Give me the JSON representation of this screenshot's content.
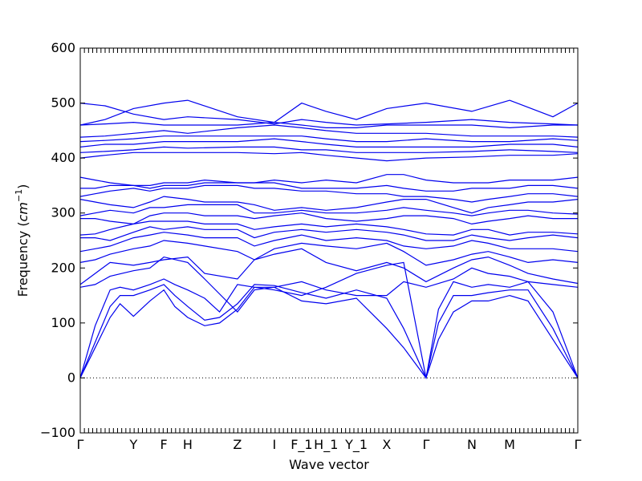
{
  "chart_data": {
    "type": "line",
    "title": "",
    "xlabel": "Wave vector",
    "ylabel_text": "Frequency (",
    "ylabel_unit_base": "cm",
    "ylabel_unit_sup": "−1",
    "ylabel_close": ")",
    "ylim": [
      -100,
      600
    ],
    "yticks": [
      -100,
      0,
      100,
      200,
      300,
      400,
      500,
      600
    ],
    "zero_line": 0,
    "grid": false,
    "color": "#0000ee",
    "kpoints": [
      {
        "label": "Γ",
        "x": 0.0
      },
      {
        "label": "Y",
        "x": 0.107
      },
      {
        "label": "F",
        "x": 0.168
      },
      {
        "label": "H",
        "x": 0.216
      },
      {
        "label": "Z",
        "x": 0.316
      },
      {
        "label": "I",
        "x": 0.39
      },
      {
        "label": "F_1",
        "x": 0.445
      },
      {
        "label": "H_1",
        "x": 0.494
      },
      {
        "label": "Y_1",
        "x": 0.555
      },
      {
        "label": "X",
        "x": 0.616
      },
      {
        "label": "Γ",
        "x": 0.695
      },
      {
        "label": "N",
        "x": 0.787
      },
      {
        "label": "M",
        "x": 0.863
      },
      {
        "label": "Γ",
        "x": 1.0
      }
    ],
    "series": [
      {
        "x": [
          0,
          0.03,
          0.06,
          0.08,
          0.107,
          0.14,
          0.168,
          0.19,
          0.216,
          0.25,
          0.28,
          0.316,
          0.35,
          0.39,
          0.445,
          0.494,
          0.555,
          0.616,
          0.65,
          0.695,
          0.72,
          0.75,
          0.787,
          0.82,
          0.863,
          0.9,
          0.95,
          1.0
        ],
        "y": [
          0,
          55,
          110,
          135,
          112,
          140,
          160,
          130,
          110,
          95,
          100,
          125,
          165,
          165,
          140,
          135,
          145,
          90,
          55,
          0,
          70,
          120,
          140,
          140,
          150,
          140,
          70,
          0
        ]
      },
      {
        "x": [
          0,
          0.03,
          0.06,
          0.08,
          0.107,
          0.14,
          0.168,
          0.19,
          0.216,
          0.25,
          0.28,
          0.316,
          0.35,
          0.39,
          0.445,
          0.494,
          0.555,
          0.616,
          0.65,
          0.695,
          0.72,
          0.75,
          0.787,
          0.82,
          0.863,
          0.9,
          0.95,
          1.0
        ],
        "y": [
          0,
          65,
          130,
          150,
          150,
          160,
          170,
          150,
          130,
          105,
          110,
          135,
          170,
          168,
          155,
          145,
          160,
          145,
          90,
          0,
          100,
          150,
          150,
          155,
          160,
          160,
          90,
          0
        ]
      },
      {
        "x": [
          0,
          0.03,
          0.06,
          0.08,
          0.107,
          0.14,
          0.168,
          0.19,
          0.216,
          0.25,
          0.28,
          0.316,
          0.35,
          0.39,
          0.445,
          0.494,
          0.555,
          0.616,
          0.65,
          0.695,
          0.72,
          0.75,
          0.787,
          0.82,
          0.863,
          0.9,
          0.95,
          1.0
        ],
        "y": [
          0,
          95,
          160,
          165,
          160,
          170,
          180,
          170,
          160,
          145,
          120,
          170,
          165,
          160,
          150,
          165,
          190,
          205,
          210,
          0,
          125,
          175,
          165,
          170,
          165,
          175,
          120,
          0
        ]
      },
      {
        "x": [
          0,
          0.03,
          0.06,
          0.107,
          0.14,
          0.168,
          0.216,
          0.25,
          0.316,
          0.35,
          0.39,
          0.445,
          0.494,
          0.555,
          0.616,
          0.65,
          0.695,
          0.75,
          0.787,
          0.82,
          0.863,
          0.9,
          0.95,
          1.0
        ],
        "y": [
          165,
          170,
          185,
          195,
          200,
          220,
          210,
          180,
          120,
          160,
          165,
          175,
          160,
          150,
          150,
          175,
          165,
          180,
          200,
          190,
          185,
          175,
          170,
          165
        ]
      },
      {
        "x": [
          0,
          0.03,
          0.06,
          0.107,
          0.14,
          0.168,
          0.216,
          0.25,
          0.316,
          0.35,
          0.39,
          0.445,
          0.494,
          0.555,
          0.616,
          0.65,
          0.695,
          0.75,
          0.787,
          0.82,
          0.863,
          0.9,
          0.95,
          1.0
        ],
        "y": [
          170,
          190,
          210,
          205,
          210,
          215,
          220,
          190,
          180,
          215,
          225,
          235,
          210,
          195,
          210,
          200,
          175,
          200,
          215,
          220,
          205,
          190,
          180,
          172
        ]
      },
      {
        "x": [
          0,
          0.03,
          0.06,
          0.107,
          0.14,
          0.168,
          0.216,
          0.25,
          0.316,
          0.35,
          0.39,
          0.445,
          0.494,
          0.555,
          0.616,
          0.65,
          0.695,
          0.75,
          0.787,
          0.82,
          0.863,
          0.9,
          0.95,
          1.0
        ],
        "y": [
          210,
          215,
          225,
          235,
          240,
          250,
          245,
          240,
          230,
          215,
          235,
          245,
          240,
          235,
          245,
          230,
          205,
          215,
          225,
          230,
          220,
          210,
          215,
          210
        ]
      },
      {
        "x": [
          0,
          0.03,
          0.06,
          0.107,
          0.14,
          0.168,
          0.216,
          0.25,
          0.316,
          0.35,
          0.39,
          0.445,
          0.494,
          0.555,
          0.616,
          0.65,
          0.695,
          0.75,
          0.787,
          0.82,
          0.863,
          0.9,
          0.95,
          1.0
        ],
        "y": [
          230,
          235,
          240,
          255,
          260,
          265,
          260,
          255,
          255,
          240,
          250,
          260,
          250,
          255,
          250,
          240,
          235,
          240,
          250,
          245,
          235,
          235,
          235,
          230
        ]
      },
      {
        "x": [
          0,
          0.03,
          0.06,
          0.107,
          0.14,
          0.168,
          0.216,
          0.25,
          0.316,
          0.35,
          0.39,
          0.445,
          0.494,
          0.555,
          0.616,
          0.65,
          0.695,
          0.75,
          0.787,
          0.82,
          0.863,
          0.9,
          0.95,
          1.0
        ],
        "y": [
          255,
          255,
          250,
          265,
          275,
          270,
          275,
          270,
          270,
          255,
          265,
          270,
          265,
          270,
          265,
          260,
          250,
          250,
          260,
          255,
          250,
          255,
          260,
          255
        ]
      },
      {
        "x": [
          0,
          0.03,
          0.06,
          0.107,
          0.14,
          0.168,
          0.216,
          0.25,
          0.316,
          0.35,
          0.39,
          0.445,
          0.494,
          0.555,
          0.616,
          0.65,
          0.695,
          0.75,
          0.787,
          0.82,
          0.863,
          0.9,
          0.95,
          1.0
        ],
        "y": [
          260,
          262,
          270,
          280,
          285,
          285,
          285,
          280,
          280,
          270,
          275,
          280,
          275,
          280,
          275,
          270,
          262,
          260,
          270,
          270,
          260,
          265,
          265,
          262
        ]
      },
      {
        "x": [
          0,
          0.03,
          0.06,
          0.107,
          0.14,
          0.168,
          0.216,
          0.25,
          0.316,
          0.35,
          0.39,
          0.445,
          0.494,
          0.555,
          0.616,
          0.65,
          0.695,
          0.75,
          0.787,
          0.82,
          0.863,
          0.9,
          0.95,
          1.0
        ],
        "y": [
          290,
          290,
          285,
          280,
          295,
          300,
          300,
          295,
          295,
          290,
          295,
          300,
          290,
          285,
          290,
          295,
          295,
          290,
          280,
          285,
          290,
          295,
          290,
          290
        ]
      },
      {
        "x": [
          0,
          0.03,
          0.06,
          0.107,
          0.14,
          0.168,
          0.216,
          0.25,
          0.316,
          0.35,
          0.39,
          0.445,
          0.494,
          0.555,
          0.616,
          0.65,
          0.695,
          0.75,
          0.787,
          0.82,
          0.863,
          0.9,
          0.95,
          1.0
        ],
        "y": [
          295,
          300,
          305,
          300,
          310,
          310,
          315,
          315,
          315,
          300,
          300,
          305,
          300,
          300,
          305,
          310,
          305,
          300,
          295,
          300,
          305,
          305,
          300,
          298
        ]
      },
      {
        "x": [
          0,
          0.03,
          0.06,
          0.107,
          0.14,
          0.168,
          0.216,
          0.25,
          0.316,
          0.35,
          0.39,
          0.445,
          0.494,
          0.555,
          0.616,
          0.65,
          0.695,
          0.75,
          0.787,
          0.82,
          0.863,
          0.9,
          0.95,
          1.0
        ],
        "y": [
          325,
          320,
          315,
          310,
          320,
          330,
          325,
          320,
          320,
          315,
          305,
          310,
          305,
          310,
          320,
          325,
          325,
          310,
          300,
          310,
          315,
          320,
          320,
          325
        ]
      },
      {
        "x": [
          0,
          0.03,
          0.06,
          0.107,
          0.14,
          0.168,
          0.216,
          0.25,
          0.316,
          0.35,
          0.39,
          0.445,
          0.494,
          0.555,
          0.616,
          0.65,
          0.695,
          0.75,
          0.787,
          0.82,
          0.863,
          0.9,
          0.95,
          1.0
        ],
        "y": [
          330,
          335,
          340,
          345,
          340,
          345,
          345,
          350,
          350,
          345,
          345,
          340,
          340,
          335,
          335,
          330,
          330,
          325,
          320,
          325,
          330,
          335,
          335,
          330
        ]
      },
      {
        "x": [
          0,
          0.03,
          0.06,
          0.107,
          0.14,
          0.168,
          0.216,
          0.25,
          0.316,
          0.35,
          0.39,
          0.445,
          0.494,
          0.555,
          0.616,
          0.65,
          0.695,
          0.75,
          0.787,
          0.82,
          0.863,
          0.9,
          0.95,
          1.0
        ],
        "y": [
          345,
          345,
          350,
          350,
          345,
          350,
          350,
          355,
          355,
          355,
          355,
          345,
          345,
          345,
          350,
          345,
          340,
          340,
          345,
          345,
          345,
          350,
          350,
          345
        ]
      },
      {
        "x": [
          0,
          0.03,
          0.06,
          0.107,
          0.14,
          0.168,
          0.216,
          0.25,
          0.316,
          0.35,
          0.39,
          0.445,
          0.494,
          0.555,
          0.616,
          0.65,
          0.695,
          0.75,
          0.787,
          0.82,
          0.863,
          0.9,
          0.95,
          1.0
        ],
        "y": [
          365,
          360,
          355,
          350,
          350,
          355,
          355,
          360,
          355,
          355,
          360,
          355,
          360,
          355,
          370,
          370,
          360,
          355,
          355,
          355,
          360,
          360,
          360,
          365
        ]
      },
      {
        "x": [
          0,
          0.05,
          0.107,
          0.168,
          0.216,
          0.316,
          0.39,
          0.445,
          0.494,
          0.555,
          0.616,
          0.695,
          0.787,
          0.863,
          0.95,
          1.0
        ],
        "y": [
          400,
          405,
          410,
          410,
          410,
          410,
          408,
          410,
          405,
          400,
          395,
          400,
          402,
          405,
          405,
          408
        ]
      },
      {
        "x": [
          0,
          0.05,
          0.107,
          0.168,
          0.216,
          0.316,
          0.39,
          0.445,
          0.494,
          0.555,
          0.616,
          0.695,
          0.787,
          0.863,
          0.95,
          1.0
        ],
        "y": [
          410,
          412,
          415,
          420,
          418,
          420,
          420,
          415,
          415,
          410,
          410,
          410,
          412,
          415,
          412,
          410
        ]
      },
      {
        "x": [
          0,
          0.05,
          0.107,
          0.168,
          0.216,
          0.316,
          0.39,
          0.445,
          0.494,
          0.555,
          0.616,
          0.695,
          0.787,
          0.863,
          0.95,
          1.0
        ],
        "y": [
          420,
          425,
          425,
          430,
          430,
          430,
          435,
          430,
          425,
          420,
          420,
          420,
          420,
          425,
          425,
          420
        ]
      },
      {
        "x": [
          0,
          0.05,
          0.107,
          0.168,
          0.216,
          0.316,
          0.39,
          0.445,
          0.494,
          0.555,
          0.616,
          0.695,
          0.787,
          0.863,
          0.95,
          1.0
        ],
        "y": [
          430,
          432,
          435,
          440,
          440,
          440,
          440,
          440,
          435,
          430,
          430,
          435,
          430,
          430,
          435,
          432
        ]
      },
      {
        "x": [
          0,
          0.05,
          0.107,
          0.168,
          0.216,
          0.316,
          0.39,
          0.445,
          0.494,
          0.555,
          0.616,
          0.695,
          0.787,
          0.863,
          0.95,
          1.0
        ],
        "y": [
          438,
          440,
          445,
          450,
          445,
          455,
          460,
          455,
          450,
          445,
          445,
          445,
          440,
          440,
          440,
          438
        ]
      },
      {
        "x": [
          0,
          0.05,
          0.107,
          0.168,
          0.216,
          0.316,
          0.39,
          0.445,
          0.494,
          0.555,
          0.616,
          0.695,
          0.787,
          0.863,
          0.95,
          1.0
        ],
        "y": [
          460,
          462,
          465,
          460,
          460,
          460,
          465,
          460,
          455,
          455,
          460,
          460,
          460,
          455,
          460,
          460
        ]
      },
      {
        "x": [
          0,
          0.05,
          0.107,
          0.168,
          0.216,
          0.316,
          0.39,
          0.445,
          0.494,
          0.555,
          0.616,
          0.695,
          0.787,
          0.863,
          0.95,
          1.0
        ],
        "y": [
          460,
          470,
          490,
          500,
          505,
          475,
          465,
          500,
          485,
          470,
          490,
          500,
          485,
          505,
          475,
          500
        ]
      },
      {
        "x": [
          0,
          0.05,
          0.107,
          0.168,
          0.216,
          0.316,
          0.39,
          0.445,
          0.494,
          0.555,
          0.616,
          0.695,
          0.787,
          0.863,
          0.95,
          1.0
        ],
        "y": [
          500,
          495,
          480,
          470,
          475,
          470,
          462,
          470,
          465,
          460,
          462,
          465,
          470,
          465,
          462,
          460
        ]
      }
    ]
  }
}
